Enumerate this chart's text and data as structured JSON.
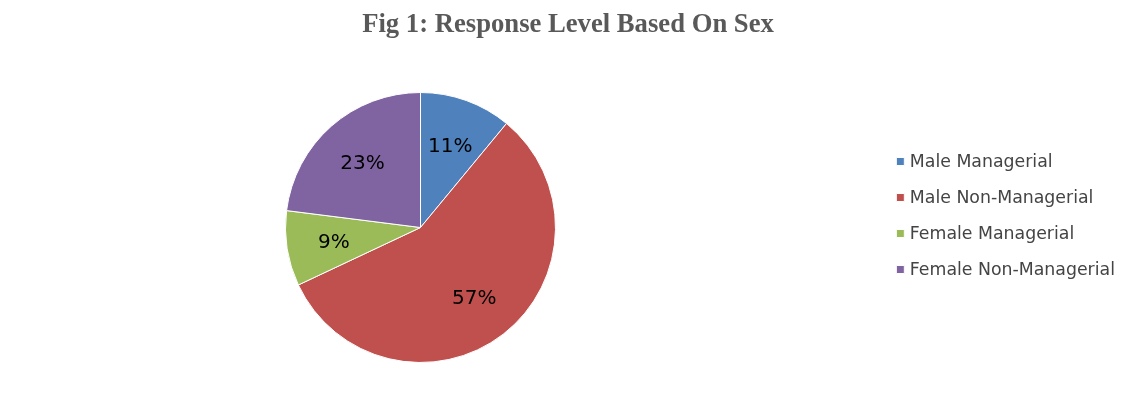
{
  "chart_data": {
    "type": "pie",
    "title": "Fig 1: Response Level Based On Sex",
    "categories": [
      "Male Managerial",
      "Male Non-Managerial",
      "Female Managerial",
      "Female Non-Managerial"
    ],
    "values": [
      11,
      57,
      9,
      23
    ],
    "colors": [
      "#4f81bd",
      "#c0504d",
      "#9bbb59",
      "#8064a2"
    ],
    "value_labels": [
      "11%",
      "57%",
      "9%",
      "23%"
    ],
    "legend": "right"
  }
}
